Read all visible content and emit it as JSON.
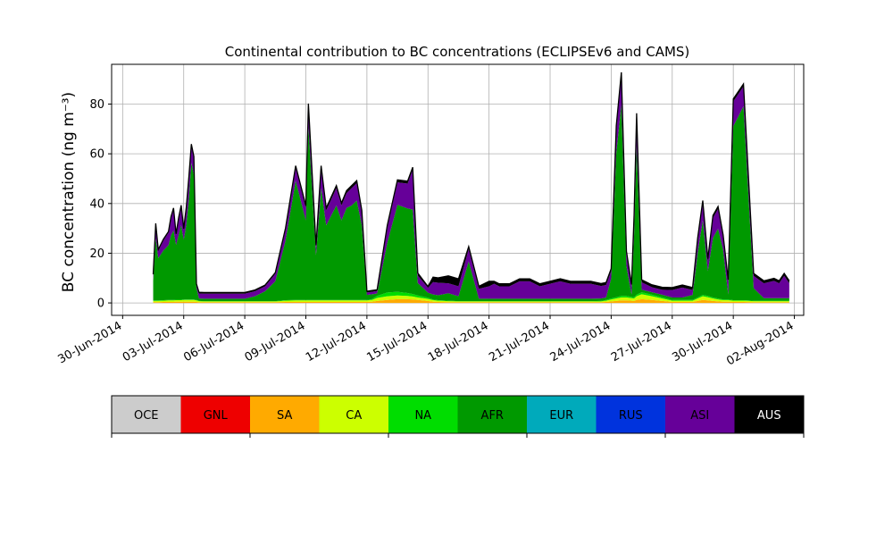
{
  "chart_data": {
    "type": "area",
    "stacked": true,
    "title": "Continental contribution to BC concentrations (ECLIPSEv6 and CAMS)",
    "ylabel": "BC concentration (ng m⁻³)",
    "xlabel": "",
    "ylim": [
      -5,
      96
    ],
    "xlim": [
      "2014-06-29T11:00",
      "2014-08-02T11:00"
    ],
    "grid": true,
    "y_ticks": [
      0,
      20,
      40,
      60,
      80
    ],
    "x_ticks": [
      {
        "date": "2014-06-30",
        "label": "30-Jun-2014"
      },
      {
        "date": "2014-07-03",
        "label": "03-Jul-2014"
      },
      {
        "date": "2014-07-06",
        "label": "06-Jul-2014"
      },
      {
        "date": "2014-07-09",
        "label": "09-Jul-2014"
      },
      {
        "date": "2014-07-12",
        "label": "12-Jul-2014"
      },
      {
        "date": "2014-07-15",
        "label": "15-Jul-2014"
      },
      {
        "date": "2014-07-18",
        "label": "18-Jul-2014"
      },
      {
        "date": "2014-07-21",
        "label": "21-Jul-2014"
      },
      {
        "date": "2014-07-24",
        "label": "24-Jul-2014"
      },
      {
        "date": "2014-07-27",
        "label": "27-Jul-2014"
      },
      {
        "date": "2014-07-30",
        "label": "30-Jul-2014"
      },
      {
        "date": "2014-08-02",
        "label": "02-Aug-2014"
      }
    ],
    "x": [
      "2014-07-01T12:00",
      "2014-07-01T15:00",
      "2014-07-01T18:00",
      "2014-07-02T00:00",
      "2014-07-02T06:00",
      "2014-07-02T09:00",
      "2014-07-02T12:00",
      "2014-07-02T15:00",
      "2014-07-02T18:00",
      "2014-07-02T21:00",
      "2014-07-03T00:00",
      "2014-07-03T03:00",
      "2014-07-03T06:00",
      "2014-07-03T09:00",
      "2014-07-03T12:00",
      "2014-07-03T15:00",
      "2014-07-03T18:00",
      "2014-07-04T00:00",
      "2014-07-04T06:00",
      "2014-07-04T12:00",
      "2014-07-05T00:00",
      "2014-07-05T12:00",
      "2014-07-06T00:00",
      "2014-07-06T12:00",
      "2014-07-07T00:00",
      "2014-07-07T12:00",
      "2014-07-08T00:00",
      "2014-07-08T12:00",
      "2014-07-09T00:00",
      "2014-07-09T03:00",
      "2014-07-09T12:00",
      "2014-07-09T18:00",
      "2014-07-10T00:00",
      "2014-07-10T12:00",
      "2014-07-10T18:00",
      "2014-07-11T00:00",
      "2014-07-11T06:00",
      "2014-07-11T12:00",
      "2014-07-11T18:00",
      "2014-07-12T00:00",
      "2014-07-12T06:00",
      "2014-07-12T12:00",
      "2014-07-13T00:00",
      "2014-07-13T12:00",
      "2014-07-14T00:00",
      "2014-07-14T06:00",
      "2014-07-14T12:00",
      "2014-07-15T00:00",
      "2014-07-15T06:00",
      "2014-07-15T12:00",
      "2014-07-16T00:00",
      "2014-07-16T12:00",
      "2014-07-17T00:00",
      "2014-07-17T12:00",
      "2014-07-18T00:00",
      "2014-07-18T06:00",
      "2014-07-18T12:00",
      "2014-07-19T00:00",
      "2014-07-19T12:00",
      "2014-07-20T00:00",
      "2014-07-20T12:00",
      "2014-07-21T00:00",
      "2014-07-21T12:00",
      "2014-07-22T00:00",
      "2014-07-22T12:00",
      "2014-07-23T00:00",
      "2014-07-23T12:00",
      "2014-07-23T18:00",
      "2014-07-24T00:00",
      "2014-07-24T06:00",
      "2014-07-24T12:00",
      "2014-07-24T18:00",
      "2014-07-25T00:00",
      "2014-07-25T03:00",
      "2014-07-25T06:00",
      "2014-07-25T12:00",
      "2014-07-26T00:00",
      "2014-07-26T12:00",
      "2014-07-27T00:00",
      "2014-07-27T12:00",
      "2014-07-28T00:00",
      "2014-07-28T06:00",
      "2014-07-28T12:00",
      "2014-07-28T18:00",
      "2014-07-29T00:00",
      "2014-07-29T06:00",
      "2014-07-29T12:00",
      "2014-07-29T18:00",
      "2014-07-30T00:00",
      "2014-07-30T12:00",
      "2014-07-31T00:00",
      "2014-07-31T12:00",
      "2014-08-01T00:00",
      "2014-08-01T06:00",
      "2014-08-01T12:00",
      "2014-08-01T18:00"
    ],
    "series": [
      {
        "name": "OCE",
        "color": "#cccccc",
        "values": [
          0,
          0,
          0,
          0,
          0,
          0,
          0,
          0,
          0,
          0,
          0,
          0,
          0,
          0,
          0,
          0,
          0,
          0,
          0,
          0,
          0,
          0,
          0,
          0,
          0,
          0,
          0,
          0,
          0,
          0,
          0,
          0,
          0,
          0,
          0,
          0,
          0,
          0,
          0,
          0,
          0,
          0,
          0,
          0,
          0,
          0,
          0,
          0,
          0,
          0,
          0,
          0,
          0,
          0,
          0,
          0,
          0,
          0,
          0,
          0,
          0,
          0,
          0,
          0,
          0,
          0,
          0,
          0,
          0,
          0,
          0,
          0,
          0,
          0,
          0,
          0,
          0,
          0,
          0,
          0,
          0,
          0,
          0,
          0,
          0,
          0,
          0,
          0,
          0,
          0,
          0,
          0,
          0,
          0,
          0,
          0
        ]
      },
      {
        "name": "GNL",
        "color": "#ee0000",
        "values": [
          0,
          0,
          0,
          0,
          0,
          0,
          0,
          0,
          0,
          0,
          0,
          0,
          0,
          0,
          0,
          0,
          0,
          0,
          0,
          0,
          0,
          0,
          0,
          0,
          0,
          0,
          0,
          0,
          0,
          0,
          0,
          0,
          0,
          0,
          0,
          0,
          0,
          0,
          0,
          0,
          0,
          0,
          0,
          0,
          0,
          0,
          0,
          0,
          0,
          0,
          0,
          0,
          0,
          0,
          0,
          0,
          0,
          0,
          0,
          0,
          0,
          0,
          0,
          0,
          0,
          0,
          0,
          0,
          0,
          0,
          0,
          0,
          0,
          0,
          0,
          0,
          0,
          0,
          0,
          0,
          0,
          0,
          0,
          0,
          0,
          0,
          0,
          0,
          0,
          0,
          0,
          0,
          0,
          0,
          0,
          0
        ]
      },
      {
        "name": "SA",
        "color": "#ffaa00",
        "values": [
          0.3,
          0.3,
          0.3,
          0.4,
          0.4,
          0.4,
          0.4,
          0.5,
          0.5,
          0.5,
          0.5,
          0.5,
          0.5,
          0.5,
          0.5,
          0.4,
          0.3,
          0.3,
          0.3,
          0.3,
          0.3,
          0.3,
          0.3,
          0.3,
          0.3,
          0.3,
          0.4,
          0.4,
          0.4,
          0.4,
          0.4,
          0.4,
          0.4,
          0.4,
          0.4,
          0.4,
          0.4,
          0.4,
          0.4,
          0.4,
          0.5,
          0.8,
          1.2,
          1.5,
          1.5,
          1.4,
          1.2,
          0.8,
          0.5,
          0.4,
          0.3,
          0.3,
          0.3,
          0.3,
          0.3,
          0.3,
          0.3,
          0.3,
          0.3,
          0.3,
          0.3,
          0.3,
          0.3,
          0.3,
          0.3,
          0.3,
          0.3,
          0.4,
          0.6,
          0.8,
          1.0,
          1.0,
          0.9,
          0.8,
          1.2,
          1.5,
          1.2,
          0.8,
          0.4,
          0.4,
          0.4,
          0.8,
          1.2,
          1.0,
          0.8,
          0.6,
          0.5,
          0.5,
          0.4,
          0.4,
          0.3,
          0.3,
          0.3,
          0.3,
          0.3,
          0.3
        ]
      },
      {
        "name": "CA",
        "color": "#ccff00",
        "values": [
          0.5,
          0.5,
          0.5,
          0.5,
          0.6,
          0.6,
          0.6,
          0.6,
          0.6,
          0.6,
          0.7,
          0.7,
          0.7,
          0.7,
          0.7,
          0.6,
          0.4,
          0.3,
          0.3,
          0.3,
          0.3,
          0.3,
          0.3,
          0.3,
          0.3,
          0.3,
          0.5,
          0.6,
          0.6,
          0.6,
          0.6,
          0.6,
          0.6,
          0.6,
          0.6,
          0.6,
          0.6,
          0.6,
          0.6,
          0.6,
          0.7,
          1.2,
          1.5,
          1.5,
          1.3,
          1.2,
          1.0,
          0.8,
          0.6,
          0.5,
          0.4,
          0.3,
          0.3,
          0.3,
          0.3,
          0.3,
          0.3,
          0.3,
          0.3,
          0.3,
          0.3,
          0.3,
          0.3,
          0.3,
          0.3,
          0.3,
          0.3,
          0.5,
          0.8,
          1.0,
          1.2,
          1.2,
          1.0,
          1.0,
          1.5,
          2.0,
          1.5,
          1.0,
          0.5,
          0.5,
          0.5,
          1.0,
          1.5,
          1.3,
          1.0,
          0.8,
          0.6,
          0.6,
          0.5,
          0.5,
          0.4,
          0.4,
          0.4,
          0.4,
          0.4,
          0.4
        ]
      },
      {
        "name": "NA",
        "color": "#00dd00",
        "values": [
          0.2,
          0.2,
          0.2,
          0.2,
          0.2,
          0.2,
          0.2,
          0.2,
          0.2,
          0.2,
          0.2,
          0.2,
          0.2,
          0.2,
          0.2,
          0.2,
          0.1,
          0.1,
          0.1,
          0.1,
          0.1,
          0.1,
          0.1,
          0.1,
          0.1,
          0.1,
          0.2,
          0.2,
          0.2,
          0.2,
          0.2,
          0.2,
          0.2,
          0.2,
          0.2,
          0.2,
          0.2,
          0.2,
          0.2,
          0.2,
          0.3,
          0.8,
          1.5,
          1.5,
          1.2,
          1.0,
          0.8,
          0.5,
          0.3,
          0.2,
          0.2,
          0.1,
          0.1,
          0.1,
          0.1,
          0.1,
          0.1,
          0.1,
          0.1,
          0.1,
          0.1,
          0.1,
          0.1,
          0.1,
          0.1,
          0.1,
          0.2,
          0.3,
          0.4,
          0.5,
          0.6,
          0.6,
          0.5,
          0.5,
          0.6,
          0.8,
          0.6,
          0.5,
          0.3,
          0.3,
          0.3,
          0.4,
          0.5,
          0.5,
          0.4,
          0.4,
          0.3,
          0.3,
          0.2,
          0.2,
          0.2,
          0.2,
          0.2,
          0.2,
          0.2,
          0.2
        ]
      },
      {
        "name": "AFR",
        "color": "#009900",
        "values": [
          8,
          25,
          17,
          20,
          22,
          26,
          28,
          22,
          26,
          30,
          24,
          30,
          40,
          55,
          50,
          5,
          1,
          1,
          1,
          1,
          1,
          1,
          1,
          2,
          4,
          8,
          24,
          48,
          32,
          70,
          18,
          45,
          30,
          38,
          32,
          37,
          38,
          40,
          30,
          2,
          2,
          1,
          20,
          35,
          34,
          34,
          5,
          2,
          2,
          2,
          3,
          2,
          16,
          1,
          1,
          1,
          1,
          1,
          1,
          1,
          1,
          1,
          1,
          1,
          1,
          1,
          1,
          1,
          8,
          58,
          77,
          12,
          1,
          25,
          60,
          1,
          1,
          1,
          1,
          1,
          2,
          18,
          30,
          10,
          24,
          28,
          20,
          2,
          70,
          78,
          5,
          1,
          1,
          1,
          1,
          1
        ]
      },
      {
        "name": "EUR",
        "color": "#00aabb",
        "values": [
          0,
          0,
          0,
          0,
          0,
          0,
          0,
          0,
          0,
          0,
          0,
          0,
          0,
          0,
          0,
          0,
          0,
          0,
          0,
          0,
          0,
          0,
          0,
          0,
          0,
          0,
          0,
          0,
          0,
          0,
          0,
          0,
          0,
          0,
          0,
          0,
          0,
          0,
          0,
          0,
          0,
          0,
          0,
          0,
          0,
          0,
          0,
          0,
          0,
          0,
          0,
          0,
          0,
          0,
          0,
          0,
          0,
          0,
          0,
          0,
          0,
          0,
          0,
          0,
          0,
          0,
          0,
          0,
          0,
          0,
          0,
          0,
          0,
          0,
          0,
          0,
          0,
          0,
          0,
          0,
          0,
          0,
          0,
          0,
          0,
          0,
          0,
          0,
          0,
          0,
          0,
          0,
          0,
          0,
          0,
          0
        ]
      },
      {
        "name": "RUS",
        "color": "#0033dd",
        "values": [
          0,
          0,
          0,
          0,
          0,
          0,
          0,
          0,
          0,
          0,
          0,
          0,
          0,
          0,
          0,
          0,
          0,
          0,
          0,
          0,
          0,
          0,
          0,
          0,
          0,
          0,
          0,
          0,
          0,
          0,
          0,
          0,
          0,
          0,
          0,
          0,
          0,
          0,
          0,
          0,
          0,
          0,
          0,
          0,
          0,
          0,
          0,
          0,
          0,
          0,
          0,
          0,
          0,
          0,
          0,
          0,
          0,
          0,
          0,
          0,
          0,
          0,
          0,
          0,
          0,
          0,
          0,
          0,
          0,
          0,
          0,
          0,
          0,
          0,
          0,
          0,
          0,
          0,
          0,
          0,
          0,
          0,
          0,
          0,
          0,
          0,
          0,
          0,
          0,
          0,
          0,
          0,
          0,
          0,
          0,
          0
        ]
      },
      {
        "name": "ASI",
        "color": "#660099",
        "values": [
          2,
          5,
          3,
          4,
          5,
          7,
          8,
          4,
          6,
          7,
          4,
          6,
          8,
          7,
          7,
          1,
          2,
          2,
          2,
          2,
          2,
          2,
          2,
          2,
          2,
          3,
          4,
          5,
          5,
          8,
          3,
          8,
          6,
          7,
          6,
          6,
          7,
          7,
          5,
          1,
          1,
          1,
          6,
          9,
          10,
          16,
          3,
          2,
          5,
          5,
          4,
          4,
          5,
          4,
          5,
          6,
          5,
          5,
          7,
          7,
          5,
          6,
          7,
          6,
          6,
          6,
          5,
          5,
          3,
          10,
          12,
          5,
          3,
          7,
          12,
          3,
          2,
          2,
          3,
          4,
          2,
          5,
          7,
          4,
          8,
          8,
          5,
          5,
          10,
          8,
          5,
          6,
          7,
          6,
          9,
          6
        ]
      },
      {
        "name": "AUS",
        "color": "#000000",
        "values": [
          0.5,
          1,
          0.5,
          0.5,
          0.5,
          0.5,
          1,
          0.5,
          1,
          1,
          0.5,
          1,
          1,
          0.5,
          0.5,
          0.5,
          0.5,
          0.5,
          0.5,
          0.5,
          0.5,
          0.5,
          0.5,
          0.5,
          0.5,
          0.5,
          1,
          1,
          1,
          1,
          1,
          1,
          1,
          1,
          1,
          1,
          1,
          1,
          1,
          0.5,
          0.5,
          0.5,
          1,
          1,
          1,
          1,
          1,
          0.5,
          2,
          2,
          3,
          3,
          1,
          1,
          2,
          1,
          1,
          1,
          1,
          1,
          1,
          1,
          1,
          1,
          1,
          1,
          1,
          1,
          1,
          1,
          1,
          1,
          1,
          1,
          1,
          1,
          1,
          1,
          1,
          1,
          1,
          1,
          1,
          1,
          1,
          1,
          1,
          1,
          1,
          1,
          1,
          1,
          1,
          1,
          1,
          1
        ]
      }
    ],
    "legend_placement": "bottom"
  }
}
